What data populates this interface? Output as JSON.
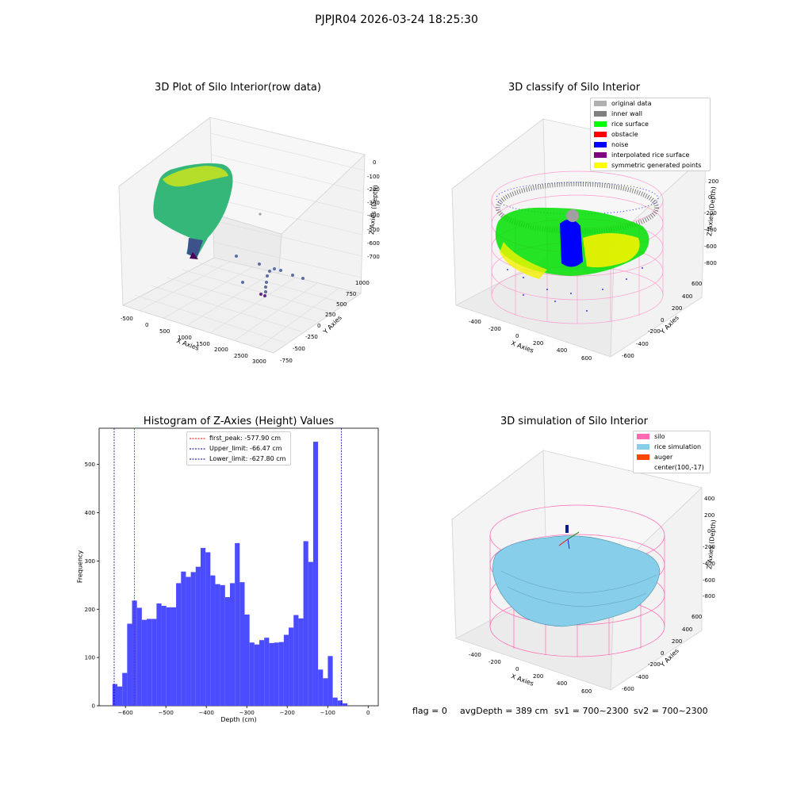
{
  "suptitle": "PJPJR04 2026-03-24 18:25:30",
  "panel1": {
    "title": "3D Plot of Silo Interior(row data)",
    "xlabel": "X Axies",
    "ylabel": "Y Axies",
    "zlabel": "Z Axies (Depth)",
    "xticks": [
      "-500",
      "0",
      "500",
      "1000",
      "1500",
      "2000",
      "2500",
      "3000"
    ],
    "yticks": [
      "-750",
      "-500",
      "-250",
      "0",
      "250",
      "500",
      "750",
      "1000"
    ],
    "zticks": [
      "0",
      "-100",
      "-200",
      "-300",
      "-400",
      "-500",
      "-600",
      "-700"
    ]
  },
  "panel2": {
    "title": "3D classify of Silo Interior",
    "xlabel": "X Axies",
    "ylabel": "Y Axies",
    "zlabel": "Z Axies (Depth)",
    "xticks": [
      "-400",
      "-200",
      "0",
      "200",
      "400",
      "600"
    ],
    "yticks": [
      "-600",
      "-400",
      "-200",
      "0",
      "200",
      "400",
      "600"
    ],
    "zticks": [
      "200",
      "0",
      "-200",
      "-400",
      "-600",
      "-800"
    ],
    "legend": [
      {
        "label": "original data",
        "color": "#b0b0b0"
      },
      {
        "label": "inner wall",
        "color": "#808080"
      },
      {
        "label": "rice surface",
        "color": "#00ff00"
      },
      {
        "label": "obstacle",
        "color": "#ff0000"
      },
      {
        "label": "noise",
        "color": "#0000ff"
      },
      {
        "label": "interpolated rice surface",
        "color": "#800080"
      },
      {
        "label": "symmetric generated points",
        "color": "#ffff00"
      }
    ]
  },
  "panel4": {
    "title": "3D simulation of Silo Interior",
    "xlabel": "X Axies",
    "ylabel": "Y Axies",
    "zlabel": "Z Axies (Depth)",
    "xticks": [
      "-400",
      "-200",
      "0",
      "200",
      "400",
      "600"
    ],
    "yticks": [
      "-600",
      "-400",
      "-200",
      "0",
      "200",
      "400",
      "600"
    ],
    "zticks": [
      "400",
      "200",
      "0",
      "-200",
      "-400",
      "-600",
      "-800"
    ],
    "legend": [
      {
        "label": "silo",
        "color": "#ff69b4"
      },
      {
        "label": "rice simulation",
        "color": "#87ceeb"
      },
      {
        "label": "auger",
        "color": "#ff4500"
      },
      {
        "label": "center(100,-17)",
        "color": ""
      }
    ]
  },
  "status": {
    "flag": "flag = 0",
    "avg": "avgDepth = 389 cm",
    "sv1": "sv1 = 700~2300",
    "sv2": "sv2 = 700~2300"
  },
  "chart_data": [
    {
      "type": "bar",
      "title": "Histogram of Z-Axies (Height) Values",
      "xlabel": "Depth (cm)",
      "ylabel": "Frequency",
      "bar_color": "#4b4bff",
      "bin_start": -632,
      "bin_width": 12.1,
      "values": [
        45,
        40,
        68,
        170,
        218,
        203,
        178,
        180,
        180,
        212,
        207,
        204,
        204,
        254,
        278,
        267,
        277,
        288,
        327,
        318,
        270,
        252,
        250,
        225,
        254,
        337,
        256,
        189,
        131,
        127,
        136,
        141,
        130,
        131,
        132,
        147,
        162,
        188,
        181,
        341,
        298,
        547,
        75,
        57,
        103,
        17,
        11,
        5
      ],
      "xlim": [
        -665,
        25
      ],
      "ylim": [
        0,
        575
      ],
      "xticks": [
        -600,
        -500,
        -400,
        -300,
        -200,
        -100,
        0
      ],
      "yticks": [
        0,
        100,
        200,
        300,
        400,
        500
      ],
      "vlines": [
        {
          "label": "first_peak: -577.90 cm",
          "x": -577.9,
          "color": "#ff0000"
        },
        {
          "label": "Upper_limit: -66.47 cm",
          "x": -66.47,
          "color": "#00008b"
        },
        {
          "label": "Lower_limit: -627.80 cm",
          "x": -627.8,
          "color": "#00008b"
        }
      ],
      "legend": "upper center"
    }
  ]
}
